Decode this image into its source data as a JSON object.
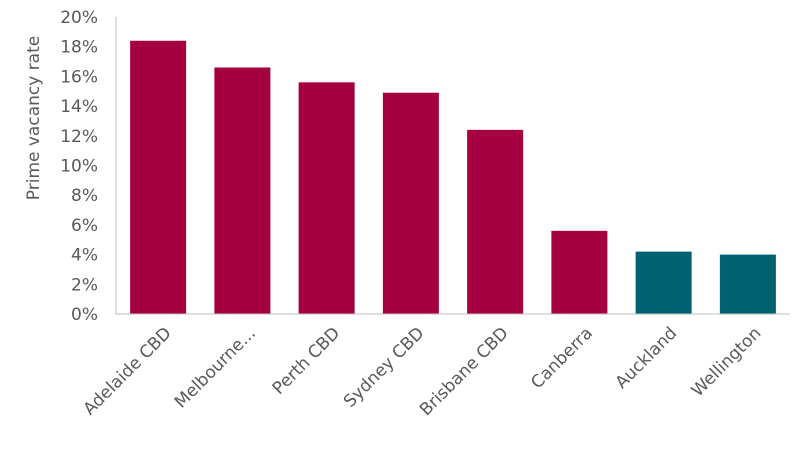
{
  "chart_data": {
    "type": "bar",
    "title": "",
    "xlabel": "",
    "ylabel": "Prime vacancy rate",
    "ylim": [
      0,
      20
    ],
    "y_ticks": [
      "0%",
      "2%",
      "4%",
      "6%",
      "8%",
      "10%",
      "12%",
      "14%",
      "16%",
      "18%",
      "20%"
    ],
    "categories": [
      "Adelaide CBD",
      "Melbourne...",
      "Perth CBD",
      "Sydney CBD",
      "Brisbane CBD",
      "Canberra",
      "Auckland",
      "Wellington"
    ],
    "values": [
      18.4,
      16.6,
      15.6,
      14.9,
      12.4,
      5.6,
      4.2,
      4.0
    ],
    "bar_colors": [
      "#A5003F",
      "#A5003F",
      "#A5003F",
      "#A5003F",
      "#A5003F",
      "#A5003F",
      "#006271",
      "#006271"
    ],
    "grid": false,
    "legend": "none"
  }
}
